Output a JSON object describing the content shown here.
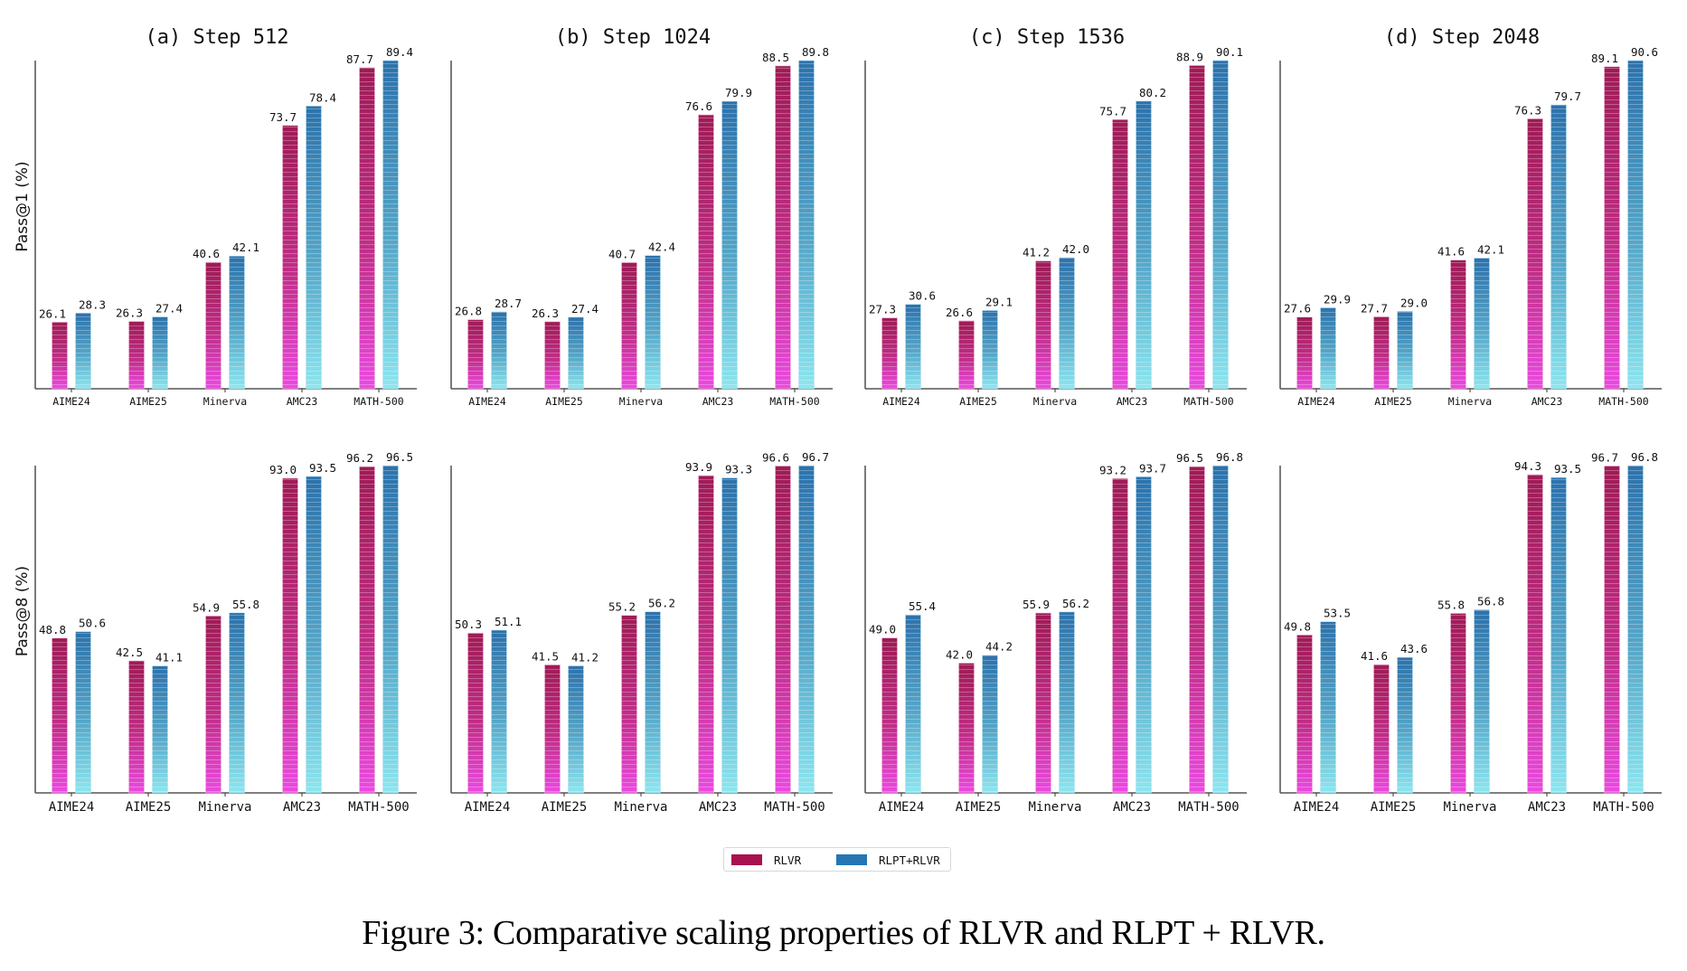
{
  "caption": "Figure 3: Comparative scaling properties of RLVR and RLPT + RLVR.",
  "legend": {
    "items": [
      {
        "label": "RLVR",
        "color": "#a8124f"
      },
      {
        "label": "RLPT+RLVR",
        "color": "#2477b4"
      }
    ],
    "placement": "bottom-center"
  },
  "colors": {
    "rlvr_top": "#a01a55",
    "rlvr_bottom": "#ea4ae0",
    "rlpt_top": "#2c72ac",
    "rlpt_bottom": "#8ce6ef",
    "axis": "#222222"
  },
  "chart_data": [
    {
      "type": "bar",
      "title": "(a) Step 512",
      "row": "Pass@1",
      "ylabel": "Pass@1 (%)",
      "xlabel": "",
      "ylim": [
        10,
        89.4
      ],
      "grid": false,
      "categories": [
        "AIME24",
        "AIME25",
        "Minerva",
        "AMC23",
        "MATH-500"
      ],
      "series": [
        {
          "name": "RLVR",
          "values": [
            26.1,
            26.3,
            40.6,
            73.7,
            87.7
          ]
        },
        {
          "name": "RLPT+RLVR",
          "values": [
            28.3,
            27.4,
            42.1,
            78.4,
            89.4
          ]
        }
      ]
    },
    {
      "type": "bar",
      "title": "(b) Step 1024",
      "row": "Pass@1",
      "ylabel": "",
      "xlabel": "",
      "ylim": [
        10,
        89.8
      ],
      "grid": false,
      "categories": [
        "AIME24",
        "AIME25",
        "Minerva",
        "AMC23",
        "MATH-500"
      ],
      "series": [
        {
          "name": "RLVR",
          "values": [
            26.8,
            26.3,
            40.7,
            76.6,
            88.5
          ]
        },
        {
          "name": "RLPT+RLVR",
          "values": [
            28.7,
            27.4,
            42.4,
            79.9,
            89.8
          ]
        }
      ]
    },
    {
      "type": "bar",
      "title": "(c) Step 1536",
      "row": "Pass@1",
      "ylabel": "",
      "xlabel": "",
      "ylim": [
        10,
        90.1
      ],
      "grid": false,
      "categories": [
        "AIME24",
        "AIME25",
        "Minerva",
        "AMC23",
        "MATH-500"
      ],
      "series": [
        {
          "name": "RLVR",
          "values": [
            27.3,
            26.6,
            41.2,
            75.7,
            88.9
          ]
        },
        {
          "name": "RLPT+RLVR",
          "values": [
            30.6,
            29.1,
            42.0,
            80.2,
            90.1
          ]
        }
      ]
    },
    {
      "type": "bar",
      "title": "(d) Step 2048",
      "row": "Pass@1",
      "ylabel": "",
      "xlabel": "",
      "ylim": [
        10,
        90.6
      ],
      "grid": false,
      "categories": [
        "AIME24",
        "AIME25",
        "Minerva",
        "AMC23",
        "MATH-500"
      ],
      "series": [
        {
          "name": "RLVR",
          "values": [
            27.6,
            27.7,
            41.6,
            76.3,
            89.1
          ]
        },
        {
          "name": "RLPT+RLVR",
          "values": [
            29.9,
            29.0,
            42.1,
            79.7,
            90.6
          ]
        }
      ]
    },
    {
      "type": "bar",
      "title": "",
      "row": "Pass@8",
      "ylabel": "Pass@8 (%)",
      "xlabel": "",
      "ylim": [
        6,
        96.5
      ],
      "grid": false,
      "categories": [
        "AIME24",
        "AIME25",
        "Minerva",
        "AMC23",
        "MATH-500"
      ],
      "series": [
        {
          "name": "RLVR",
          "values": [
            48.8,
            42.5,
            54.9,
            93.0,
            96.2
          ]
        },
        {
          "name": "RLPT+RLVR",
          "values": [
            50.6,
            41.1,
            55.8,
            93.5,
            96.5
          ]
        }
      ]
    },
    {
      "type": "bar",
      "title": "",
      "row": "Pass@8",
      "ylabel": "",
      "xlabel": "",
      "ylim": [
        6,
        96.7
      ],
      "grid": false,
      "categories": [
        "AIME24",
        "AIME25",
        "Minerva",
        "AMC23",
        "MATH-500"
      ],
      "series": [
        {
          "name": "RLVR",
          "values": [
            50.3,
            41.5,
            55.2,
            93.9,
            96.6
          ]
        },
        {
          "name": "RLPT+RLVR",
          "values": [
            51.1,
            41.2,
            56.2,
            93.3,
            96.7
          ]
        }
      ]
    },
    {
      "type": "bar",
      "title": "",
      "row": "Pass@8",
      "ylabel": "",
      "xlabel": "",
      "ylim": [
        6,
        96.8
      ],
      "grid": false,
      "categories": [
        "AIME24",
        "AIME25",
        "Minerva",
        "AMC23",
        "MATH-500"
      ],
      "series": [
        {
          "name": "RLVR",
          "values": [
            49.0,
            42.0,
            55.9,
            93.2,
            96.5
          ]
        },
        {
          "name": "RLPT+RLVR",
          "values": [
            55.4,
            44.2,
            56.2,
            93.7,
            96.8
          ]
        }
      ]
    },
    {
      "type": "bar",
      "title": "",
      "row": "Pass@8",
      "ylabel": "",
      "xlabel": "",
      "ylim": [
        6,
        96.8
      ],
      "grid": false,
      "categories": [
        "AIME24",
        "AIME25",
        "Minerva",
        "AMC23",
        "MATH-500"
      ],
      "series": [
        {
          "name": "RLVR",
          "values": [
            49.8,
            41.6,
            55.8,
            94.3,
            96.7
          ]
        },
        {
          "name": "RLPT+RLVR",
          "values": [
            53.5,
            43.6,
            56.8,
            93.5,
            96.8
          ]
        }
      ]
    }
  ]
}
